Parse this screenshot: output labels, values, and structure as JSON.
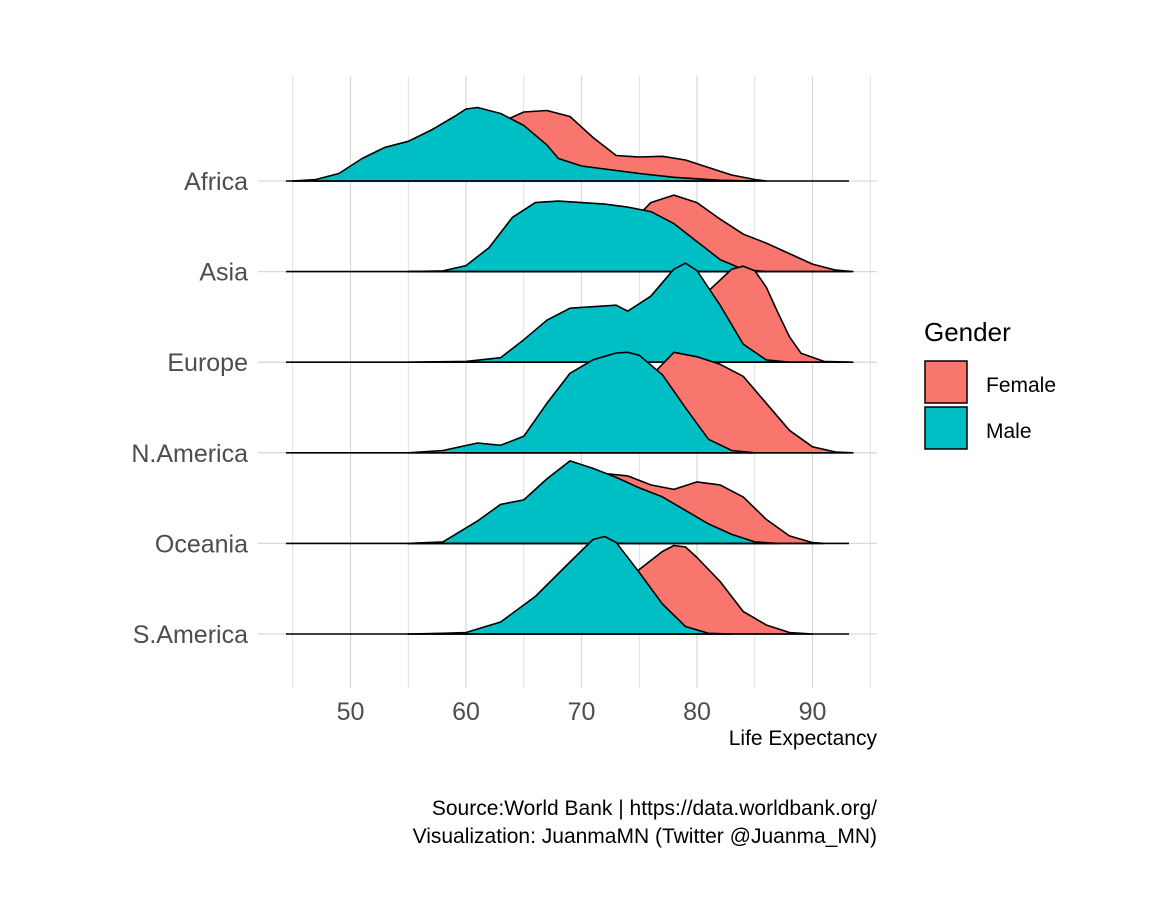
{
  "chart_data": {
    "type": "ridgeline",
    "title": "",
    "xlabel": "Life Expectancy",
    "ylabel": "",
    "xlim": [
      44.5,
      95
    ],
    "x_ticks": [
      50,
      60,
      70,
      80,
      90
    ],
    "grid": true,
    "legend": {
      "title": "Gender",
      "position": "right",
      "entries": [
        {
          "name": "Female",
          "color": "#F8766D"
        },
        {
          "name": "Male",
          "color": "#00BFC4"
        }
      ]
    },
    "categories": [
      "Africa",
      "Asia",
      "Europe",
      "N.America",
      "Oceania",
      "S.America"
    ],
    "series": [
      {
        "name": "Female",
        "color": "#F8766D",
        "densities": [
          {
            "category": "Africa",
            "points": [
              [
                45,
                0
              ],
              [
                50,
                0.02
              ],
              [
                55,
                0.08
              ],
              [
                58,
                0.18
              ],
              [
                61,
                0.46
              ],
              [
                63,
                0.78
              ],
              [
                65,
                0.92
              ],
              [
                67,
                0.94
              ],
              [
                69,
                0.86
              ],
              [
                71,
                0.58
              ],
              [
                73,
                0.34
              ],
              [
                75,
                0.32
              ],
              [
                77,
                0.33
              ],
              [
                79,
                0.28
              ],
              [
                81,
                0.18
              ],
              [
                83,
                0.08
              ],
              [
                85,
                0.02
              ],
              [
                86,
                0
              ]
            ]
          },
          {
            "category": "Asia",
            "points": [
              [
                55,
                0
              ],
              [
                60,
                0.01
              ],
              [
                65,
                0.03
              ],
              [
                68,
                0.06
              ],
              [
                70,
                0.12
              ],
              [
                72,
                0.3
              ],
              [
                74,
                0.6
              ],
              [
                76,
                0.92
              ],
              [
                78,
                1.02
              ],
              [
                80,
                0.92
              ],
              [
                82,
                0.7
              ],
              [
                84,
                0.5
              ],
              [
                86,
                0.38
              ],
              [
                88,
                0.24
              ],
              [
                90,
                0.1
              ],
              [
                92,
                0.02
              ],
              [
                93.5,
                0
              ]
            ]
          },
          {
            "category": "Europe",
            "points": [
              [
                65,
                0
              ],
              [
                70,
                0.02
              ],
              [
                74,
                0.06
              ],
              [
                77,
                0.16
              ],
              [
                79,
                0.46
              ],
              [
                81,
                0.95
              ],
              [
                83,
                1.24
              ],
              [
                84,
                1.28
              ],
              [
                85,
                1.22
              ],
              [
                86,
                1.0
              ],
              [
                87,
                0.66
              ],
              [
                88,
                0.34
              ],
              [
                89,
                0.12
              ],
              [
                91,
                0.01
              ],
              [
                93.5,
                0
              ]
            ]
          },
          {
            "category": "N.America",
            "points": [
              [
                60,
                0
              ],
              [
                65,
                0.02
              ],
              [
                70,
                0.1
              ],
              [
                72,
                0.3
              ],
              [
                74,
                0.62
              ],
              [
                76,
                1.02
              ],
              [
                78,
                1.34
              ],
              [
                80,
                1.28
              ],
              [
                82,
                1.18
              ],
              [
                84,
                1.02
              ],
              [
                86,
                0.66
              ],
              [
                88,
                0.3
              ],
              [
                90,
                0.08
              ],
              [
                92,
                0.01
              ],
              [
                93.5,
                0
              ]
            ]
          },
          {
            "category": "Oceania",
            "points": [
              [
                55,
                0
              ],
              [
                60,
                0.02
              ],
              [
                65,
                0.08
              ],
              [
                70,
                0.36
              ],
              [
                72,
                0.93
              ],
              [
                74,
                0.9
              ],
              [
                76,
                0.78
              ],
              [
                78,
                0.72
              ],
              [
                80,
                0.82
              ],
              [
                82,
                0.78
              ],
              [
                84,
                0.62
              ],
              [
                86,
                0.32
              ],
              [
                88,
                0.1
              ],
              [
                90,
                0.01
              ],
              [
                91,
                0
              ]
            ]
          },
          {
            "category": "S.America",
            "points": [
              [
                55,
                0
              ],
              [
                60,
                0.01
              ],
              [
                65,
                0.05
              ],
              [
                70,
                0.18
              ],
              [
                73,
                0.5
              ],
              [
                75,
                0.86
              ],
              [
                77,
                1.1
              ],
              [
                78,
                1.18
              ],
              [
                79,
                1.16
              ],
              [
                80,
                1.02
              ],
              [
                82,
                0.7
              ],
              [
                84,
                0.3
              ],
              [
                86,
                0.12
              ],
              [
                88,
                0.02
              ],
              [
                90,
                0
              ]
            ]
          }
        ]
      },
      {
        "name": "Male",
        "color": "#00BFC4",
        "densities": [
          {
            "category": "Africa",
            "points": [
              [
                45,
                0
              ],
              [
                47,
                0.02
              ],
              [
                49,
                0.1
              ],
              [
                51,
                0.3
              ],
              [
                53,
                0.45
              ],
              [
                55,
                0.53
              ],
              [
                57,
                0.68
              ],
              [
                59,
                0.86
              ],
              [
                60,
                0.96
              ],
              [
                61,
                0.98
              ],
              [
                63,
                0.9
              ],
              [
                65,
                0.74
              ],
              [
                67,
                0.48
              ],
              [
                68,
                0.3
              ],
              [
                70,
                0.2
              ],
              [
                72,
                0.16
              ],
              [
                75,
                0.1
              ],
              [
                78,
                0.05
              ],
              [
                82,
                0.01
              ],
              [
                85,
                0
              ]
            ]
          },
          {
            "category": "Asia",
            "points": [
              [
                55,
                0
              ],
              [
                58,
                0.01
              ],
              [
                60,
                0.08
              ],
              [
                62,
                0.32
              ],
              [
                64,
                0.72
              ],
              [
                66,
                0.92
              ],
              [
                68,
                0.94
              ],
              [
                70,
                0.92
              ],
              [
                72,
                0.9
              ],
              [
                74,
                0.86
              ],
              [
                76,
                0.8
              ],
              [
                78,
                0.64
              ],
              [
                80,
                0.4
              ],
              [
                82,
                0.16
              ],
              [
                84,
                0.03
              ],
              [
                86,
                0
              ]
            ]
          },
          {
            "category": "Europe",
            "points": [
              [
                55,
                0
              ],
              [
                60,
                0.01
              ],
              [
                63,
                0.06
              ],
              [
                65,
                0.3
              ],
              [
                67,
                0.56
              ],
              [
                69,
                0.72
              ],
              [
                71,
                0.74
              ],
              [
                73,
                0.76
              ],
              [
                74,
                0.68
              ],
              [
                76,
                0.88
              ],
              [
                78,
                1.24
              ],
              [
                79,
                1.32
              ],
              [
                80,
                1.22
              ],
              [
                82,
                0.76
              ],
              [
                84,
                0.24
              ],
              [
                86,
                0.03
              ],
              [
                88,
                0
              ]
            ]
          },
          {
            "category": "N.America",
            "points": [
              [
                55,
                0
              ],
              [
                58,
                0.03
              ],
              [
                61,
                0.13
              ],
              [
                63,
                0.1
              ],
              [
                65,
                0.22
              ],
              [
                67,
                0.66
              ],
              [
                69,
                1.06
              ],
              [
                71,
                1.24
              ],
              [
                73,
                1.33
              ],
              [
                74,
                1.34
              ],
              [
                75,
                1.3
              ],
              [
                77,
                1.04
              ],
              [
                79,
                0.6
              ],
              [
                81,
                0.18
              ],
              [
                83,
                0.03
              ],
              [
                85,
                0
              ]
            ]
          },
          {
            "category": "Oceania",
            "points": [
              [
                55,
                0
              ],
              [
                58,
                0.02
              ],
              [
                61,
                0.3
              ],
              [
                63,
                0.52
              ],
              [
                65,
                0.58
              ],
              [
                67,
                0.86
              ],
              [
                69,
                1.1
              ],
              [
                71,
                1.0
              ],
              [
                73,
                0.88
              ],
              [
                75,
                0.74
              ],
              [
                77,
                0.62
              ],
              [
                79,
                0.44
              ],
              [
                81,
                0.26
              ],
              [
                83,
                0.12
              ],
              [
                85,
                0.02
              ],
              [
                87,
                0
              ]
            ]
          },
          {
            "category": "S.America",
            "points": [
              [
                55,
                0
              ],
              [
                58,
                0.01
              ],
              [
                60,
                0.02
              ],
              [
                63,
                0.16
              ],
              [
                66,
                0.5
              ],
              [
                69,
                0.96
              ],
              [
                71,
                1.26
              ],
              [
                72,
                1.3
              ],
              [
                73,
                1.22
              ],
              [
                75,
                0.82
              ],
              [
                77,
                0.4
              ],
              [
                79,
                0.1
              ],
              [
                81,
                0.01
              ],
              [
                83,
                0
              ]
            ]
          }
        ]
      }
    ]
  },
  "caption": {
    "line1": "Source:World Bank  | https://data.worldbank.org/",
    "line2": "Visualization: JuanmaMN (Twitter @Juanma_MN)"
  },
  "colors": {
    "female": "#F8766D",
    "male": "#00BFC4",
    "grid": "#d9d9d9",
    "outline": "#000000"
  }
}
